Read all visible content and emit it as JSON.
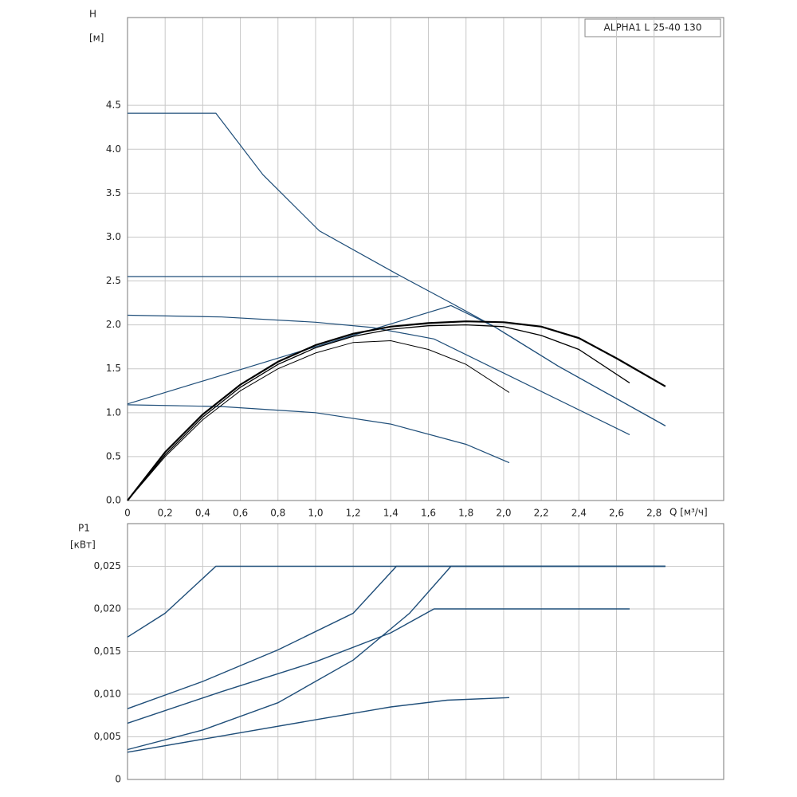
{
  "chart_data": [
    {
      "type": "line",
      "ylabel": "H",
      "yunit": "[м]",
      "xlabel": "Q [м³/ч]",
      "annotation": "ALPHA1 L 25-40 130",
      "xlim": [
        0,
        3.17
      ],
      "ylim": [
        0,
        5.5
      ],
      "grid": true,
      "xticks": [
        0,
        {
          "value": 0.2,
          "label": "0,2"
        },
        {
          "value": 0.4,
          "label": "0,4"
        },
        {
          "value": 0.6,
          "label": "0,6"
        },
        {
          "value": 0.8,
          "label": "0,8"
        },
        {
          "value": 1.0,
          "label": "1,0"
        },
        {
          "value": 1.2,
          "label": "1,2"
        },
        {
          "value": 1.4,
          "label": "1,4"
        },
        {
          "value": 1.6,
          "label": "1,6"
        },
        {
          "value": 1.8,
          "label": "1,8"
        },
        {
          "value": 2.0,
          "label": "2,0"
        },
        {
          "value": 2.2,
          "label": "2,2"
        },
        {
          "value": 2.4,
          "label": "2,4"
        },
        {
          "value": 2.6,
          "label": "2,6"
        },
        {
          "value": 2.8,
          "label": "2,8"
        }
      ],
      "yticks": [
        {
          "value": 0,
          "label": "0.0"
        },
        0.5,
        {
          "value": 1,
          "label": "1.0"
        },
        1.5,
        {
          "value": 2,
          "label": "2.0"
        },
        2.5,
        {
          "value": 3,
          "label": "3.0"
        },
        3.5,
        {
          "value": 4,
          "label": "4.0"
        },
        4.5
      ],
      "series": [
        {
          "color": "#1f4e79",
          "width": 1.2,
          "x": [
            0,
            0.47,
            0.72,
            1.02,
            1.44,
            1.72,
            1.95,
            2.29,
            2.86
          ],
          "values": [
            4.41,
            4.41,
            3.71,
            3.07,
            2.57,
            2.25,
            1.98,
            1.53,
            0.85
          ]
        },
        {
          "color": "#1f4e79",
          "width": 1.2,
          "x": [
            0,
            1.44
          ],
          "values": [
            2.55,
            2.55
          ]
        },
        {
          "color": "#1f4e79",
          "width": 1.2,
          "x": [
            0,
            1.72,
            1.95,
            2.29,
            2.86
          ],
          "values": [
            1.1,
            2.22,
            1.98,
            1.53,
            0.85
          ]
        },
        {
          "color": "#1f4e79",
          "width": 1.2,
          "x": [
            0,
            0.5,
            1.0,
            1.3,
            1.63,
            2.67
          ],
          "values": [
            2.11,
            2.09,
            2.03,
            1.97,
            1.84,
            0.75
          ]
        },
        {
          "color": "#1f4e79",
          "width": 1.2,
          "x": [
            0,
            0.5,
            1.0,
            1.4,
            1.8,
            2.03
          ],
          "values": [
            1.09,
            1.07,
            1.0,
            0.87,
            0.64,
            0.43
          ]
        },
        {
          "color": "#000000",
          "width": 2.2,
          "x": [
            0,
            0.2,
            0.4,
            0.6,
            0.8,
            1.0,
            1.2,
            1.4,
            1.6,
            1.8,
            2.0,
            2.2,
            2.4,
            2.6,
            2.86
          ],
          "values": [
            0,
            0.55,
            0.98,
            1.32,
            1.58,
            1.77,
            1.9,
            1.98,
            2.02,
            2.04,
            2.03,
            1.98,
            1.85,
            1.62,
            1.3
          ]
        },
        {
          "color": "#000000",
          "width": 1.3,
          "x": [
            0,
            0.2,
            0.4,
            0.6,
            0.8,
            1.0,
            1.2,
            1.4,
            1.6,
            1.8,
            2.0,
            2.2,
            2.4,
            2.67
          ],
          "values": [
            0,
            0.52,
            0.95,
            1.29,
            1.55,
            1.74,
            1.87,
            1.95,
            1.99,
            2.0,
            1.98,
            1.88,
            1.72,
            1.34
          ]
        },
        {
          "color": "#000000",
          "width": 1.0,
          "x": [
            0,
            0.2,
            0.4,
            0.6,
            0.8,
            1.0,
            1.2,
            1.4,
            1.6,
            1.8,
            2.03
          ],
          "values": [
            0,
            0.5,
            0.92,
            1.25,
            1.5,
            1.68,
            1.8,
            1.82,
            1.72,
            1.55,
            1.23
          ]
        }
      ]
    },
    {
      "type": "line",
      "ylabel": "P1",
      "yunit": "[кВт]",
      "xlim": [
        0,
        3.17
      ],
      "ylim": [
        0,
        0.03
      ],
      "grid": true,
      "yticks": [
        0,
        {
          "value": 0.005,
          "label": "0,005"
        },
        {
          "value": 0.01,
          "label": "0,010"
        },
        {
          "value": 0.015,
          "label": "0,015"
        },
        {
          "value": 0.02,
          "label": "0,020"
        },
        {
          "value": 0.025,
          "label": "0,025"
        }
      ],
      "series": [
        {
          "color": "#1f4e79",
          "width": 1.4,
          "x": [
            0,
            0.2,
            0.47,
            2.86
          ],
          "values": [
            0.0167,
            0.0195,
            0.025,
            0.025
          ]
        },
        {
          "color": "#1f4e79",
          "width": 1.4,
          "x": [
            0,
            0.4,
            0.8,
            1.2,
            1.43,
            2.86
          ],
          "values": [
            0.0083,
            0.0115,
            0.0152,
            0.0195,
            0.025,
            0.025
          ]
        },
        {
          "color": "#1f4e79",
          "width": 1.4,
          "x": [
            0,
            0.5,
            1.0,
            1.4,
            1.63,
            2.67
          ],
          "values": [
            0.0066,
            0.0103,
            0.0138,
            0.0172,
            0.02,
            0.02
          ]
        },
        {
          "color": "#1f4e79",
          "width": 1.4,
          "x": [
            0,
            0.4,
            0.8,
            1.2,
            1.5,
            1.72,
            2.86
          ],
          "values": [
            0.0035,
            0.0058,
            0.009,
            0.014,
            0.0195,
            0.025,
            0.025
          ]
        },
        {
          "color": "#1f4e79",
          "width": 1.4,
          "x": [
            0,
            0.5,
            1.0,
            1.4,
            1.7,
            2.03
          ],
          "values": [
            0.0032,
            0.0051,
            0.007,
            0.0085,
            0.0093,
            0.0096
          ]
        }
      ]
    }
  ]
}
